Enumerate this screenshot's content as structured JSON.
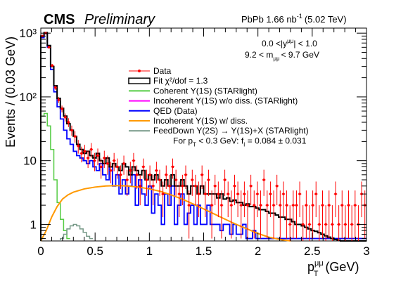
{
  "header": {
    "cms_label": "CMS",
    "preliminary_label": "Preliminary",
    "lumi_label": "PbPb 1.66 nb",
    "lumi_exp": "-1",
    "lumi_energy": "(5.02 TeV)"
  },
  "annotations": {
    "rapidity_cut": "0.0 <|y",
    "rapidity_sup": "μμ",
    "rapidity_end": "| < 1.0",
    "mass_cut": "9.2 < m",
    "mass_sub": "μμ",
    "mass_end": "< 9.7 GeV"
  },
  "legend": [
    {
      "label": "Data",
      "color": "#ff0000",
      "style": "marker"
    },
    {
      "label": "Fit   χ²/dof = 1.3",
      "color": "#000000",
      "style": "box"
    },
    {
      "label": "Coherent Υ(1S) (STARlight)",
      "color": "#55cc44",
      "style": "line"
    },
    {
      "label": "Incoherent Υ(1S) w/o diss. (STARlight)",
      "color": "#ff00ff",
      "style": "line"
    },
    {
      "label": "QED (Data)",
      "color": "#0000ff",
      "style": "line"
    },
    {
      "label": "Incoherent Υ(1S) w/ diss.",
      "color": "#ff9900",
      "style": "line"
    },
    {
      "label": "FeedDown Υ(2S)   → Υ(1S)+X (STARlight)",
      "color": "#779988",
      "style": "line"
    },
    {
      "label": "For p",
      "sub": "T",
      "rest": " < 0.3 GeV: f",
      "sub2": "I",
      "rest2": " = 0.084   ± 0.031",
      "style": "none"
    }
  ],
  "chart_data": {
    "type": "histogram",
    "title": "",
    "xlabel": "p",
    "xlabel_sub": "T",
    "xlabel_sup": "μμ",
    "xlabel_unit": "(GeV)",
    "ylabel": "Events / (0.03 GeV)",
    "xlim": [
      0,
      3
    ],
    "ylim": [
      0.55,
      1200
    ],
    "yscale": "log",
    "bin_width": 0.03,
    "x_ticks": [
      0,
      0.5,
      1,
      1.5,
      2,
      2.5,
      3
    ],
    "x_tick_labels": [
      "0",
      "0.5",
      "1",
      "1.5",
      "2",
      "2.5",
      "3"
    ],
    "y_ticks": [
      1,
      10,
      100,
      1000
    ],
    "y_tick_labels": [
      "1",
      "10",
      "10²",
      "10³"
    ],
    "data_points": [
      {
        "x": 0.015,
        "y": 900,
        "err": 30
      },
      {
        "x": 0.045,
        "y": 1000,
        "err": 32
      },
      {
        "x": 0.075,
        "y": 600,
        "err": 25
      },
      {
        "x": 0.105,
        "y": 310,
        "err": 18
      },
      {
        "x": 0.135,
        "y": 140,
        "err": 12
      },
      {
        "x": 0.165,
        "y": 90,
        "err": 9.5
      },
      {
        "x": 0.195,
        "y": 65,
        "err": 8
      },
      {
        "x": 0.225,
        "y": 48,
        "err": 7
      },
      {
        "x": 0.255,
        "y": 40,
        "err": 6.3
      },
      {
        "x": 0.285,
        "y": 30,
        "err": 5.5
      },
      {
        "x": 0.315,
        "y": 24,
        "err": 4.9
      },
      {
        "x": 0.345,
        "y": 17,
        "err": 4.1
      },
      {
        "x": 0.375,
        "y": 13,
        "err": 3.6
      },
      {
        "x": 0.405,
        "y": 14,
        "err": 3.7
      },
      {
        "x": 0.435,
        "y": 11,
        "err": 3.3
      },
      {
        "x": 0.465,
        "y": 15,
        "err": 3.9
      },
      {
        "x": 0.495,
        "y": 10,
        "err": 3.2
      },
      {
        "x": 0.525,
        "y": 12,
        "err": 3.5
      },
      {
        "x": 0.555,
        "y": 8,
        "err": 2.8
      },
      {
        "x": 0.585,
        "y": 11,
        "err": 3.3
      },
      {
        "x": 0.615,
        "y": 9,
        "err": 3
      },
      {
        "x": 0.645,
        "y": 7,
        "err": 2.6
      },
      {
        "x": 0.675,
        "y": 10,
        "err": 3.2
      },
      {
        "x": 0.705,
        "y": 8,
        "err": 2.8
      },
      {
        "x": 0.735,
        "y": 6,
        "err": 2.4
      },
      {
        "x": 0.765,
        "y": 9,
        "err": 3
      },
      {
        "x": 0.795,
        "y": 5,
        "err": 2.2
      },
      {
        "x": 0.825,
        "y": 7,
        "err": 2.6
      },
      {
        "x": 0.855,
        "y": 10,
        "err": 3.2
      },
      {
        "x": 0.885,
        "y": 6,
        "err": 2.4
      },
      {
        "x": 0.915,
        "y": 4,
        "err": 2
      },
      {
        "x": 0.945,
        "y": 8,
        "err": 2.8
      },
      {
        "x": 0.975,
        "y": 5,
        "err": 2.2
      },
      {
        "x": 1.005,
        "y": 6,
        "err": 2.4
      },
      {
        "x": 1.035,
        "y": 4,
        "err": 2
      },
      {
        "x": 1.065,
        "y": 7,
        "err": 2.6
      },
      {
        "x": 1.095,
        "y": 5,
        "err": 2.2
      },
      {
        "x": 1.125,
        "y": 3,
        "err": 1.7
      },
      {
        "x": 1.155,
        "y": 6,
        "err": 2.4
      },
      {
        "x": 1.185,
        "y": 4,
        "err": 2
      },
      {
        "x": 1.215,
        "y": 8,
        "err": 2.8
      },
      {
        "x": 1.245,
        "y": 5,
        "err": 2.2
      },
      {
        "x": 1.275,
        "y": 3,
        "err": 1.7
      },
      {
        "x": 1.305,
        "y": 4,
        "err": 2
      },
      {
        "x": 1.335,
        "y": 6,
        "err": 2.4
      },
      {
        "x": 1.365,
        "y": 2,
        "err": 1.4
      },
      {
        "x": 1.395,
        "y": 5,
        "err": 2.2
      },
      {
        "x": 1.425,
        "y": 4,
        "err": 2
      },
      {
        "x": 1.455,
        "y": 3,
        "err": 1.7
      },
      {
        "x": 1.485,
        "y": 6,
        "err": 2.4
      },
      {
        "x": 1.515,
        "y": 3,
        "err": 1.7
      },
      {
        "x": 1.545,
        "y": 5,
        "err": 2.2
      },
      {
        "x": 1.575,
        "y": 2,
        "err": 1.4
      },
      {
        "x": 1.605,
        "y": 4,
        "err": 2
      },
      {
        "x": 1.635,
        "y": 3,
        "err": 1.7
      },
      {
        "x": 1.665,
        "y": 2,
        "err": 1.4
      },
      {
        "x": 1.695,
        "y": 5,
        "err": 2.2
      },
      {
        "x": 1.725,
        "y": 3,
        "err": 1.7
      },
      {
        "x": 1.755,
        "y": 2,
        "err": 1.4
      },
      {
        "x": 1.785,
        "y": 4,
        "err": 2
      },
      {
        "x": 1.815,
        "y": 3,
        "err": 1.7
      },
      {
        "x": 1.845,
        "y": 2,
        "err": 1.4
      },
      {
        "x": 1.875,
        "y": 3,
        "err": 1.7
      },
      {
        "x": 1.905,
        "y": 2,
        "err": 1.4
      },
      {
        "x": 1.935,
        "y": 4,
        "err": 2
      },
      {
        "x": 1.965,
        "y": 2,
        "err": 1.4
      },
      {
        "x": 1.995,
        "y": 3,
        "err": 1.7
      },
      {
        "x": 2.025,
        "y": 2,
        "err": 1.4
      },
      {
        "x": 2.055,
        "y": 5,
        "err": 2.2
      },
      {
        "x": 2.085,
        "y": 2,
        "err": 1.4
      },
      {
        "x": 2.115,
        "y": 3,
        "err": 1.7
      },
      {
        "x": 2.145,
        "y": 2,
        "err": 1.4
      },
      {
        "x": 2.175,
        "y": 4,
        "err": 2
      },
      {
        "x": 2.205,
        "y": 2,
        "err": 1.4
      },
      {
        "x": 2.235,
        "y": 3,
        "err": 1.7
      },
      {
        "x": 2.265,
        "y": 2,
        "err": 1.4
      },
      {
        "x": 2.295,
        "y": 1,
        "err": 1
      },
      {
        "x": 2.325,
        "y": 2,
        "err": 1.4
      },
      {
        "x": 2.355,
        "y": 2,
        "err": 1.4
      },
      {
        "x": 2.385,
        "y": 3,
        "err": 1.7
      },
      {
        "x": 2.415,
        "y": 1,
        "err": 1
      },
      {
        "x": 2.445,
        "y": 2,
        "err": 1.4
      },
      {
        "x": 2.475,
        "y": 1,
        "err": 1
      },
      {
        "x": 2.505,
        "y": 2,
        "err": 1.4
      },
      {
        "x": 2.535,
        "y": 3,
        "err": 1.7
      },
      {
        "x": 2.565,
        "y": 1,
        "err": 1
      },
      {
        "x": 2.595,
        "y": 2,
        "err": 1.4
      },
      {
        "x": 2.625,
        "y": 1,
        "err": 1
      },
      {
        "x": 2.655,
        "y": 2,
        "err": 1.4
      },
      {
        "x": 2.685,
        "y": 1,
        "err": 1
      },
      {
        "x": 2.715,
        "y": 3,
        "err": 1.7
      },
      {
        "x": 2.745,
        "y": 1,
        "err": 1
      },
      {
        "x": 2.775,
        "y": 2,
        "err": 1.4
      },
      {
        "x": 2.805,
        "y": 1,
        "err": 1
      },
      {
        "x": 2.835,
        "y": 2,
        "err": 1.4
      },
      {
        "x": 2.865,
        "y": 1,
        "err": 1
      },
      {
        "x": 2.895,
        "y": 2,
        "err": 1.4
      },
      {
        "x": 2.925,
        "y": 1,
        "err": 1
      },
      {
        "x": 2.955,
        "y": 3,
        "err": 1.7
      },
      {
        "x": 2.985,
        "y": 2,
        "err": 1.4
      }
    ],
    "fit_hist": [
      900,
      1020,
      640,
      300,
      150,
      95,
      66,
      50,
      38,
      30,
      24,
      18,
      15,
      13,
      14,
      12,
      11,
      13,
      10,
      9,
      11,
      8,
      9,
      8,
      7,
      9,
      8,
      6,
      8,
      7,
      6,
      7,
      5,
      6,
      5,
      6,
      5,
      4,
      5,
      4,
      6,
      4,
      4,
      5,
      4,
      3,
      4,
      4,
      3,
      4,
      3,
      3,
      3,
      3,
      2.6,
      3,
      2.5,
      2.6,
      2.3,
      2.4,
      2.2,
      2.2,
      2.0,
      2.1,
      1.9,
      1.9,
      1.8,
      1.7,
      1.7,
      1.6,
      1.5,
      1.5,
      1.4,
      1.3,
      1.3,
      1.2,
      1.2,
      1.1,
      1.0,
      1.0,
      0.95,
      0.9,
      0.85,
      0.8,
      0.78,
      0.74,
      0.7,
      0.66,
      0.63,
      0.6,
      0.58,
      0.56,
      0.55,
      0.55,
      0.55,
      0.55,
      0.55,
      0.55,
      0.55,
      0.55
    ],
    "qed_hist": [
      850,
      980,
      600,
      270,
      120,
      70,
      45,
      30,
      22,
      18,
      14,
      12,
      11,
      10,
      9,
      10,
      8,
      7,
      9,
      6,
      5,
      8,
      4,
      6,
      3,
      5,
      3,
      4,
      6,
      2,
      5,
      3,
      2,
      4,
      1.5,
      3,
      2,
      1,
      3,
      2,
      4,
      1,
      2,
      3,
      1,
      1.5,
      2,
      1,
      2,
      1,
      1,
      2,
      1,
      1,
      1,
      0.8,
      1,
      1,
      0.7,
      1,
      0.7,
      0.7,
      1,
      0.6,
      0.6,
      0.8,
      0.6,
      0.6,
      0.6,
      0.6,
      0.6,
      0.6,
      0.6,
      0.6,
      0.6,
      0.6,
      0.6,
      0.6,
      0.6,
      0.6,
      0.6,
      0.6,
      0.6,
      0.6,
      0.6,
      0.6,
      0.6,
      0.6,
      0.6,
      0.6,
      0.6,
      0.6,
      0.6,
      0.6,
      0.6,
      0.6,
      0.6,
      0.6,
      0.6,
      0.6
    ],
    "coherent_hist": [
      50,
      55,
      35,
      15,
      5,
      2.2,
      1.2,
      0.8,
      0.6
    ],
    "feeddown_hist": [
      0,
      0,
      0,
      0,
      0,
      0,
      0.6,
      0.7,
      0.85,
      0.95,
      1.0,
      0.95,
      0.85,
      0.75,
      0.65,
      0.6
    ],
    "incoherent_curve": {
      "x": [
        0.0,
        0.05,
        0.1,
        0.15,
        0.2,
        0.25,
        0.3,
        0.4,
        0.5,
        0.6,
        0.7,
        0.8,
        0.9,
        1.0,
        1.1,
        1.2,
        1.3,
        1.4,
        1.5,
        1.6,
        1.7,
        1.8,
        1.9,
        2.0,
        2.1,
        2.2,
        2.3
      ],
      "y": [
        0.55,
        0.8,
        1.3,
        1.9,
        2.5,
        2.9,
        3.2,
        3.6,
        3.85,
        4.0,
        4.05,
        4.0,
        3.85,
        3.6,
        3.3,
        2.9,
        2.5,
        2.1,
        1.75,
        1.45,
        1.2,
        1.0,
        0.85,
        0.72,
        0.63,
        0.58,
        0.55
      ]
    }
  }
}
